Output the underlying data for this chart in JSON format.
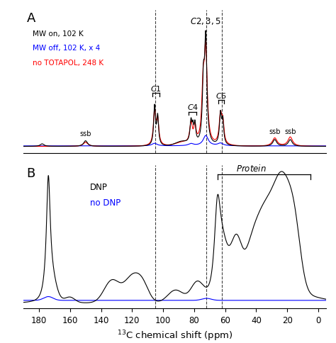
{
  "title_A": "A",
  "title_B": "B",
  "xlabel": "$^{13}$C chemical shift (ppm)",
  "xlim_left": 190,
  "xlim_right": -5,
  "legend_A": [
    {
      "label": "MW on, 102 K",
      "color": "black"
    },
    {
      "label": "MW off, 102 K, x 4",
      "color": "blue"
    },
    {
      "label": "no TOTAPOL, 248 K",
      "color": "red"
    }
  ],
  "legend_B": [
    {
      "label": "DNP",
      "color": "black"
    },
    {
      "label": "no DNP",
      "color": "blue"
    }
  ],
  "dashed_lines_ppm": [
    105,
    72,
    62
  ],
  "xticks": [
    180,
    160,
    140,
    120,
    100,
    80,
    60,
    40,
    20,
    0
  ],
  "background_color": "#ffffff"
}
